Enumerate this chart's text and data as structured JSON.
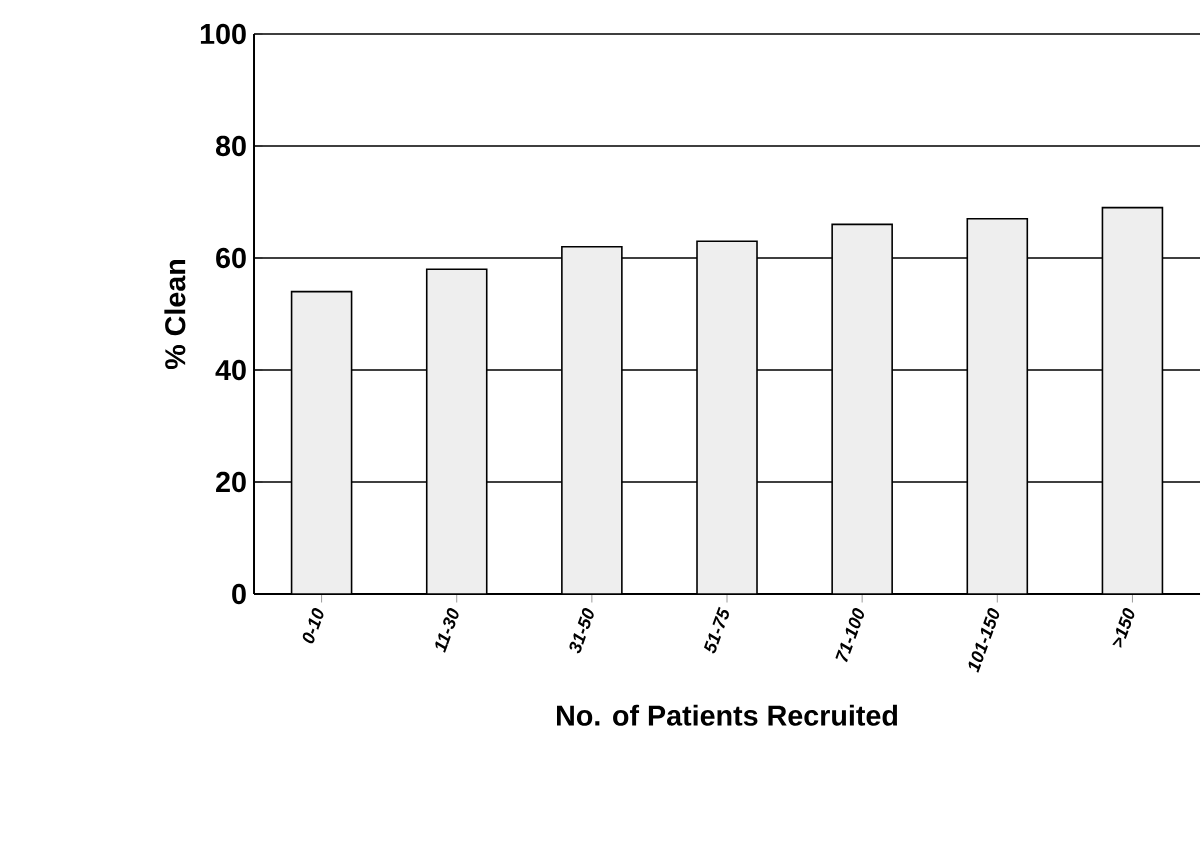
{
  "chart_data": {
    "type": "bar",
    "xlabel": "No. of Patients Recruited",
    "ylabel": "% Clean",
    "categories": [
      "0-10",
      "11-30",
      "31-50",
      "51-75",
      "71-100",
      "101-150",
      ">150"
    ],
    "values": [
      54,
      58,
      62,
      63,
      66,
      67,
      69
    ],
    "color": "#eeeeee",
    "ylim": [
      0,
      100
    ],
    "yticks": [
      0,
      20,
      40,
      60,
      80,
      100
    ],
    "grid": "y"
  }
}
